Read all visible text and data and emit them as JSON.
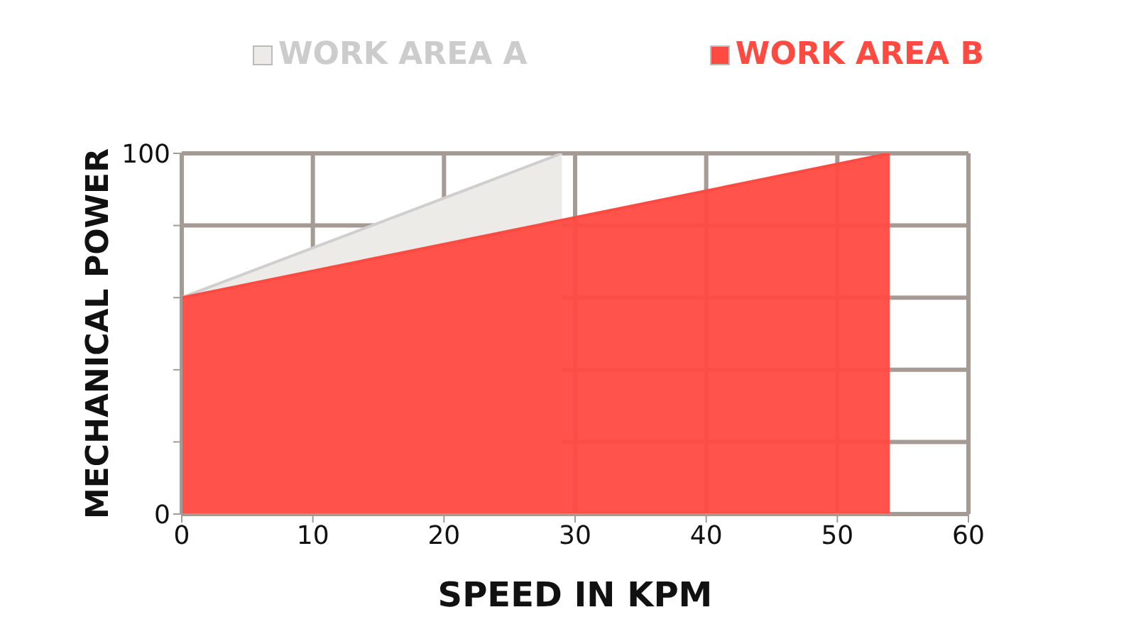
{
  "chart_data": {
    "type": "area",
    "xlabel": "SPEED IN KPM",
    "ylabel": "MECHANICAL POWER",
    "series": [
      {
        "name": "WORK AREA A",
        "color": "#ecebe8",
        "x": [
          0,
          29
        ],
        "values": [
          60,
          100
        ]
      },
      {
        "name": "WORK AREA B",
        "color": "#ff4a42",
        "x": [
          0,
          54
        ],
        "values": [
          60,
          100
        ]
      }
    ],
    "xlim": [
      0,
      60
    ],
    "xticks": [
      0,
      10,
      20,
      30,
      40,
      50,
      60
    ],
    "ylim": [
      0,
      100
    ],
    "yticks": [
      0,
      {
        "value": 20,
        "label": null
      },
      {
        "value": 40,
        "label": null
      },
      {
        "value": 60,
        "label": null
      },
      {
        "value": 80,
        "label": null
      },
      100
    ],
    "grid": true,
    "legend": "top"
  }
}
